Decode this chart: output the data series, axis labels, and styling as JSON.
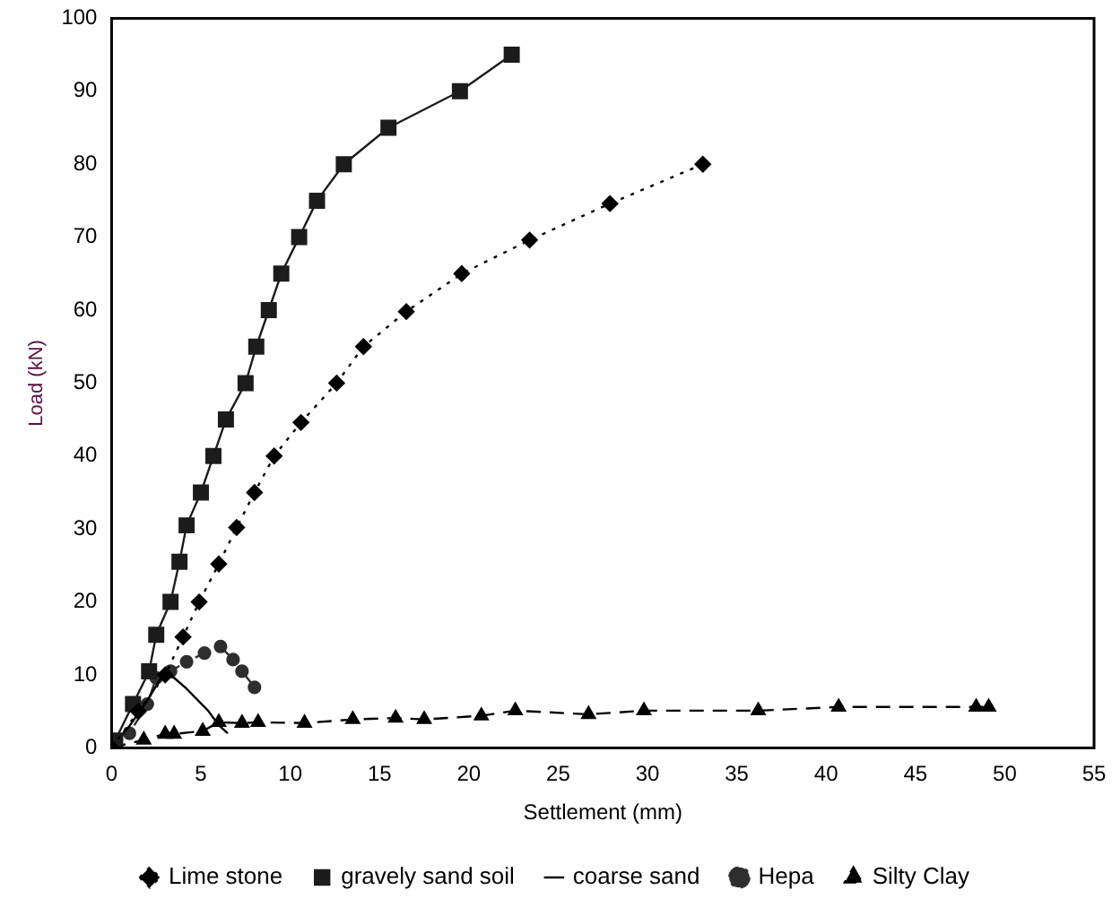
{
  "chart_data": {
    "type": "line",
    "xlabel": "Settlement (mm)",
    "ylabel": "Load (kN)",
    "xlim": [
      0,
      55
    ],
    "xticks": [
      0,
      5,
      10,
      15,
      20,
      25,
      30,
      35,
      40,
      45,
      50,
      55
    ],
    "ylim": [
      0,
      100
    ],
    "yticks": [
      0,
      10,
      20,
      30,
      40,
      50,
      60,
      70,
      80,
      90,
      100
    ],
    "grid": false,
    "legend": "bottom",
    "series": [
      {
        "name": "Lime stone",
        "color": "#000000",
        "marker": "diamond",
        "line_style": "dotted",
        "x": [
          0,
          1.5,
          3,
          4,
          4.9,
          6,
          7,
          8,
          9.1,
          10.6,
          12.6,
          14.1,
          16.5,
          19.6,
          23.4,
          27.9,
          33.1
        ],
        "values": [
          0,
          5,
          10,
          15.2,
          20,
          25.2,
          30.2,
          35,
          40,
          44.6,
          50,
          55,
          59.8,
          65,
          69.6,
          74.6,
          80
        ]
      },
      {
        "name": "gravely sand soil",
        "color": "#1c1c1c",
        "marker": "square",
        "line_style": "solid",
        "x": [
          0,
          0.2,
          1.2,
          2.1,
          2.5,
          3.3,
          3.8,
          4.2,
          5,
          5.7,
          6.4,
          7.5,
          8.1,
          8.8,
          9.5,
          10.5,
          11.5,
          13,
          15.5,
          19.5,
          22.4
        ],
        "values": [
          0,
          1,
          6,
          10.5,
          15.5,
          20,
          25.5,
          30.5,
          35,
          40,
          45,
          50,
          55,
          60,
          65,
          70,
          75,
          80,
          85,
          90,
          95
        ]
      },
      {
        "name": "coarse sand",
        "color": "#000000",
        "marker": "none",
        "line_style": "solid",
        "x": [
          0,
          1,
          2,
          2.9,
          3.5,
          4.2,
          5.4,
          6,
          6.5
        ],
        "values": [
          0,
          3,
          6.5,
          10.1,
          9.6,
          8.1,
          5.1,
          3.1,
          2
        ]
      },
      {
        "name": "Hepa",
        "color": "#2e2e2e",
        "marker": "circle",
        "line_style": "dashdot",
        "x": [
          0,
          1,
          2,
          2.5,
          3.3,
          4.2,
          5.2,
          6.1,
          6.8,
          7.3,
          8
        ],
        "values": [
          0,
          2,
          6,
          9.6,
          10.5,
          11.8,
          13,
          13.9,
          12.1,
          10.5,
          8.3
        ]
      },
      {
        "name": "Silty Clay",
        "color": "#000000",
        "marker": "triangle",
        "line_style": "dashed",
        "x": [
          0,
          1.8,
          3,
          3.5,
          5.1,
          6,
          7.3,
          8.2,
          10.8,
          13.5,
          15.9,
          17.5,
          20.7,
          22.6,
          26.7,
          29.8,
          36.2,
          40.7,
          48.4,
          49.1
        ],
        "values": [
          0,
          1.1,
          1.9,
          1.9,
          2.3,
          3.5,
          3.4,
          3.5,
          3.4,
          3.9,
          4.1,
          3.9,
          4.4,
          5.1,
          4.6,
          5.1,
          5.1,
          5.6,
          5.6,
          5.6
        ]
      }
    ]
  }
}
